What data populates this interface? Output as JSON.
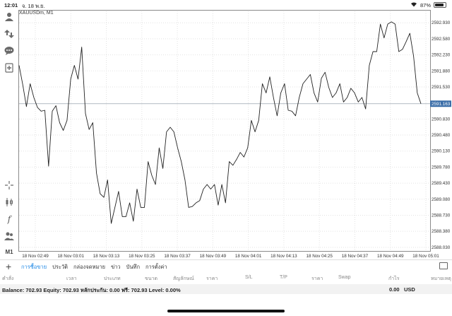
{
  "status_bar": {
    "time": "12:01",
    "date": "จ. 18 พ.ย.",
    "battery": "87%",
    "battery_level": 0.87
  },
  "toolbar": {
    "icons": [
      "person-icon",
      "transfer-icon",
      "chat-icon",
      "add-document-icon",
      "crosshair-icon",
      "candles-icon",
      "function-icon",
      "people-icon"
    ],
    "timeframe": "M1"
  },
  "chart": {
    "symbol": "XAUUSDm, M1",
    "current_price_label": "2591.163"
  },
  "chart_data": {
    "type": "line",
    "title": "XAUUSDm, M1",
    "xlabel": "",
    "ylabel": "",
    "ylim": [
      2587.95,
      2593.18
    ],
    "grid": true,
    "current_price": 2591.163,
    "y_ticks": [
      "2592.930",
      "2592.580",
      "2592.230",
      "2591.880",
      "2591.530",
      "2590.830",
      "2590.480",
      "2590.130",
      "2589.780",
      "2589.430",
      "2589.080",
      "2588.730",
      "2588.380",
      "2588.030"
    ],
    "x_ticks": [
      "18 Nov 02:49",
      "18 Nov 03:01",
      "18 Nov 03:13",
      "18 Nov 03:25",
      "18 Nov 03:37",
      "18 Nov 03:49",
      "18 Nov 04:01",
      "18 Nov 04:13",
      "18 Nov 04:25",
      "18 Nov 04:37",
      "18 Nov 04:49",
      "18 Nov 05:01"
    ],
    "series": [
      {
        "values": [
          2592.0,
          2591.58,
          2591.1,
          2591.6,
          2591.3,
          2591.08,
          2591.0,
          2591.02,
          2589.8,
          2591.0,
          2591.12,
          2590.75,
          2590.58,
          2590.8,
          2591.7,
          2592.0,
          2591.7,
          2592.4,
          2590.95,
          2590.6,
          2590.75,
          2589.65,
          2589.2,
          2589.12,
          2589.5,
          2588.55,
          2588.9,
          2589.25,
          2588.7,
          2588.7,
          2589.0,
          2588.6,
          2589.3,
          2588.9,
          2588.9,
          2589.9,
          2589.6,
          2589.4,
          2590.2,
          2589.75,
          2590.55,
          2590.65,
          2590.55,
          2590.2,
          2589.9,
          2589.5,
          2588.9,
          2588.92,
          2589.0,
          2589.05,
          2589.3,
          2589.4,
          2589.3,
          2589.4,
          2588.95,
          2589.4,
          2589.0,
          2589.9,
          2589.82,
          2589.95,
          2590.1,
          2590.0,
          2590.2,
          2590.8,
          2590.55,
          2590.8,
          2591.6,
          2591.4,
          2591.75,
          2591.3,
          2590.9,
          2591.4,
          2591.6,
          2591.02,
          2591.0,
          2590.9,
          2591.3,
          2591.6,
          2591.7,
          2591.8,
          2591.4,
          2591.2,
          2591.72,
          2591.85,
          2591.52,
          2591.3,
          2591.4,
          2591.6,
          2591.2,
          2591.3,
          2591.5,
          2591.4,
          2591.2,
          2591.3,
          2591.05,
          2592.0,
          2592.3,
          2592.3,
          2592.9,
          2592.6,
          2592.9,
          2592.95,
          2592.9,
          2592.3,
          2592.35,
          2592.52,
          2592.7,
          2592.2,
          2591.4,
          2591.163
        ]
      }
    ]
  },
  "tabs": {
    "items": [
      "การซื้อขาย",
      "ประวัติ",
      "กล่องจดหมาย",
      "ข่าว",
      "บันทึก",
      "การตั้งค่า"
    ],
    "active_index": 0
  },
  "columns": [
    "คำสั่ง",
    "เวลา",
    "ประเภท",
    "ขนาด",
    "สัญลักษณ์",
    "ราคา",
    "S/L",
    "T/P",
    "ราคา",
    "Swap",
    "กำไร",
    "หมายเหตุ"
  ],
  "balance": {
    "text": "Balance: 702.93 Equity: 702.93 หลักประกัน: 0.00 ฟรี: 702.93 Level: 0.00%",
    "profit": "0.00",
    "currency": "USD"
  }
}
